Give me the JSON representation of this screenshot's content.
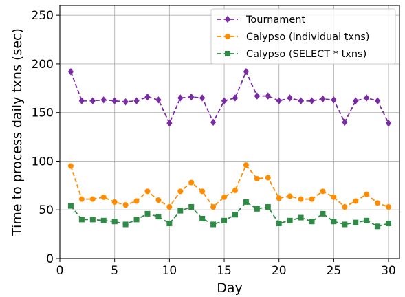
{
  "chart_data": {
    "type": "line",
    "xlabel": "Day",
    "ylabel": "Time to process daily txns (sec)",
    "xlim": [
      0,
      31
    ],
    "ylim": [
      0,
      260
    ],
    "xticks": [
      0,
      5,
      10,
      15,
      20,
      25,
      30
    ],
    "yticks": [
      0,
      50,
      100,
      150,
      200,
      250
    ],
    "grid": true,
    "legend_position": "top-right",
    "x": [
      1,
      2,
      3,
      4,
      5,
      6,
      7,
      8,
      9,
      10,
      11,
      12,
      13,
      14,
      15,
      16,
      17,
      18,
      19,
      20,
      21,
      22,
      23,
      24,
      25,
      26,
      27,
      28,
      29,
      30
    ],
    "series": [
      {
        "name": "Tournament",
        "color": "#7b2aa6",
        "marker": "diamond",
        "values": [
          192,
          162,
          162,
          163,
          162,
          161,
          162,
          166,
          163,
          139,
          165,
          166,
          165,
          140,
          162,
          165,
          192,
          167,
          167,
          162,
          165,
          162,
          162,
          164,
          163,
          140,
          162,
          165,
          162,
          139
        ]
      },
      {
        "name": "Calypso (Individual txns)",
        "color": "#ff8c00",
        "marker": "circle",
        "values": [
          95,
          61,
          61,
          63,
          58,
          55,
          59,
          69,
          60,
          53,
          69,
          78,
          69,
          53,
          63,
          70,
          96,
          82,
          83,
          62,
          64,
          61,
          61,
          69,
          63,
          53,
          59,
          66,
          57,
          53
        ]
      },
      {
        "name": "Calypso (SELECT * txns)",
        "color": "#2e8b45",
        "marker": "square",
        "values": [
          54,
          40,
          40,
          39,
          38,
          35,
          40,
          46,
          43,
          36,
          49,
          53,
          41,
          35,
          39,
          45,
          58,
          51,
          53,
          36,
          39,
          42,
          38,
          46,
          38,
          35,
          37,
          39,
          33,
          36
        ]
      }
    ]
  }
}
